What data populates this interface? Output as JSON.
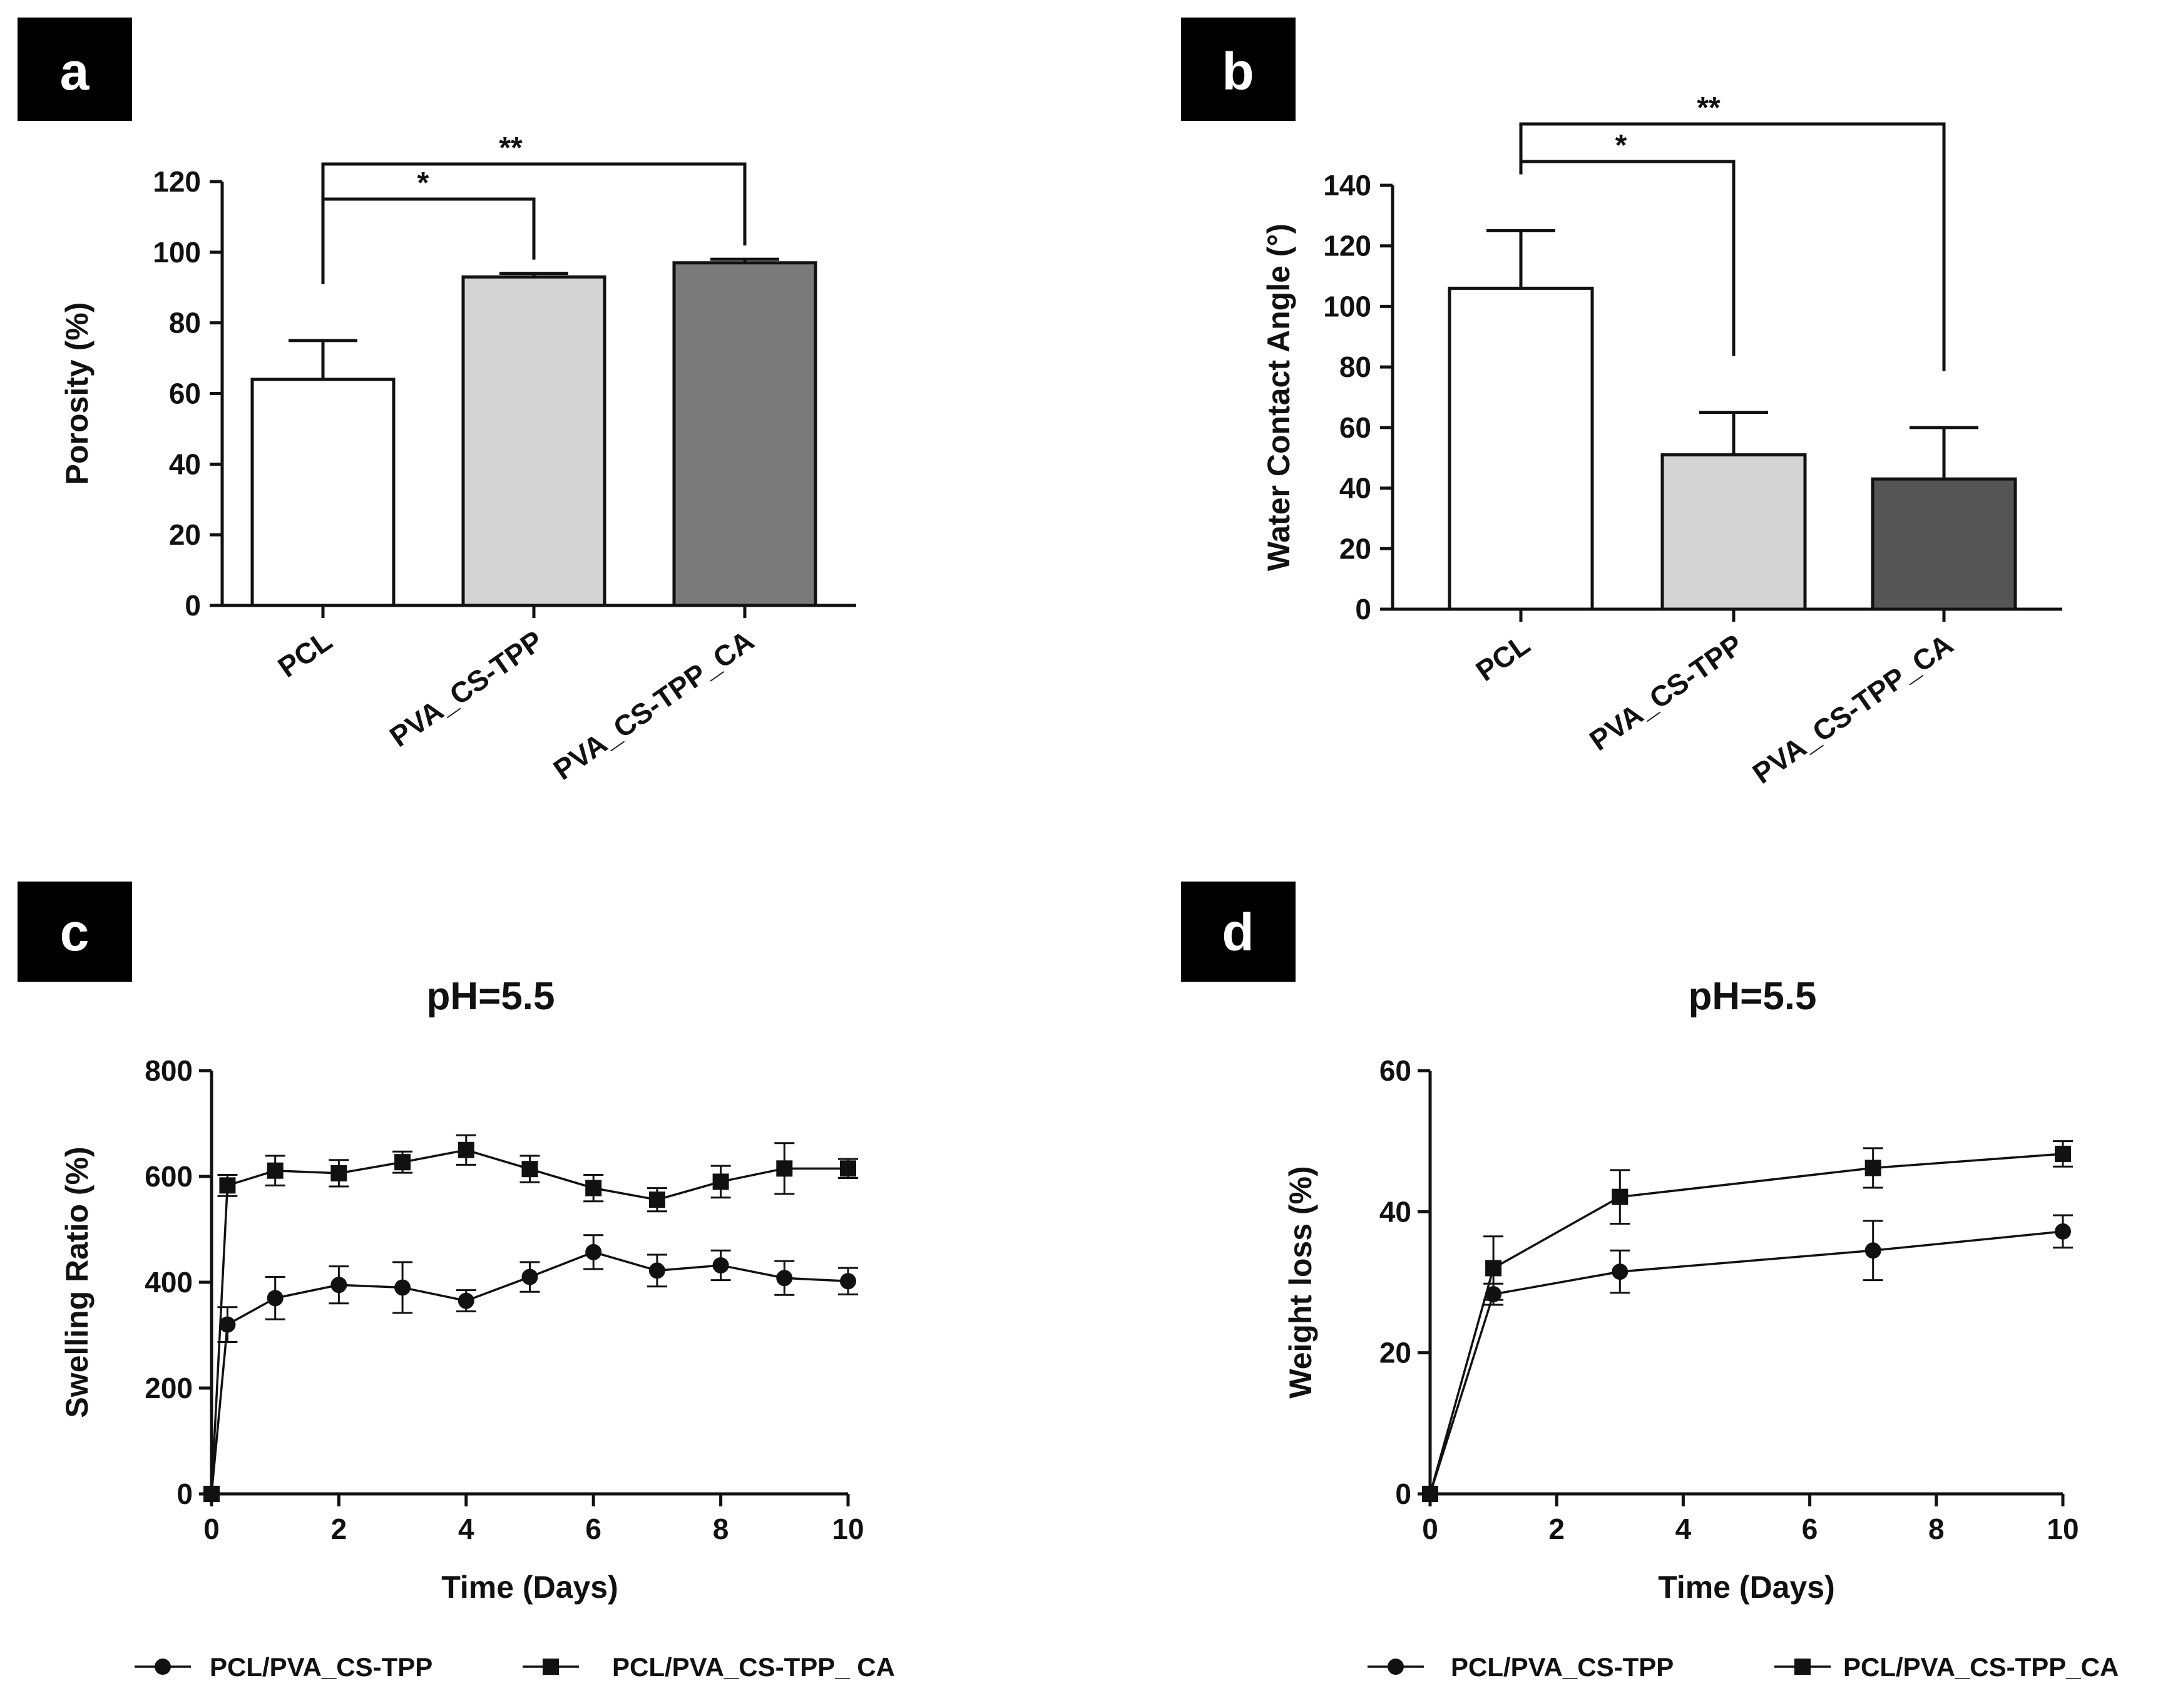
{
  "panels": {
    "a": {
      "label": "a"
    },
    "b": {
      "label": "b"
    },
    "c": {
      "label": "c",
      "title": "pH=5.5"
    },
    "d": {
      "label": "d",
      "title": "pH=5.5"
    }
  },
  "colors": {
    "white_bar": "#ffffff",
    "light_bar": "#d4d4d4",
    "mid_bar": "#7a7a7a",
    "dark_bar": "#555555",
    "ink": "#111111"
  },
  "chart_data": [
    {
      "id": "a",
      "type": "bar",
      "categories": [
        "PCL",
        "PVA_CS-TPP",
        "PVA_CS-TPP_CA"
      ],
      "values": [
        64,
        93,
        97
      ],
      "errors": [
        11,
        1,
        1
      ],
      "bar_colors": [
        "#ffffff",
        "#d4d4d4",
        "#7a7a7a"
      ],
      "ylabel": "Porosity (%)",
      "ylim": [
        0,
        120
      ],
      "yticks": [
        0,
        20,
        40,
        60,
        80,
        100,
        120
      ],
      "significance": [
        {
          "from": 0,
          "to": 1,
          "label": "*"
        },
        {
          "from": 0,
          "to": 2,
          "label": "**"
        }
      ]
    },
    {
      "id": "b",
      "type": "bar",
      "categories": [
        "PCL",
        "PVA_CS-TPP",
        "PVA_CS-TPP_CA"
      ],
      "values": [
        106,
        51,
        43
      ],
      "errors": [
        19,
        14,
        17
      ],
      "bar_colors": [
        "#ffffff",
        "#d4d4d4",
        "#555555"
      ],
      "ylabel": "Water Contact Angle (°)",
      "ylim": [
        0,
        140
      ],
      "yticks": [
        0,
        20,
        40,
        60,
        80,
        100,
        120,
        140
      ],
      "significance": [
        {
          "from": 0,
          "to": 1,
          "label": "*"
        },
        {
          "from": 0,
          "to": 2,
          "label": "**"
        }
      ]
    },
    {
      "id": "c",
      "type": "line",
      "title": "pH=5.5",
      "xlabel": "Time (Days)",
      "ylabel": "Swelling Ratio (%)",
      "xlim": [
        0,
        10
      ],
      "ylim": [
        0,
        800
      ],
      "xticks": [
        0,
        2,
        4,
        6,
        8,
        10
      ],
      "yticks": [
        0,
        200,
        400,
        600,
        800
      ],
      "series": [
        {
          "name": "PCL/PVA_CS-TPP",
          "marker": "circle",
          "x": [
            0,
            0.25,
            1,
            2,
            3,
            4,
            5,
            6,
            7,
            8,
            9,
            10
          ],
          "y": [
            0,
            320,
            370,
            395,
            390,
            365,
            410,
            457,
            422,
            432,
            408,
            402
          ],
          "err": [
            0,
            33,
            40,
            35,
            48,
            20,
            28,
            32,
            30,
            28,
            32,
            25
          ]
        },
        {
          "name": "PCL/PVA_CS-TPP_ CA",
          "marker": "square",
          "x": [
            0,
            0.25,
            1,
            2,
            3,
            4,
            5,
            6,
            7,
            8,
            9,
            10
          ],
          "y": [
            0,
            583,
            611,
            606,
            627,
            650,
            614,
            578,
            556,
            590,
            615,
            615
          ],
          "err": [
            0,
            20,
            28,
            25,
            20,
            28,
            25,
            25,
            22,
            30,
            48,
            18
          ]
        }
      ]
    },
    {
      "id": "d",
      "type": "line",
      "title": "pH=5.5",
      "xlabel": "Time (Days)",
      "ylabel": "Weight loss  (%)",
      "xlim": [
        0,
        10
      ],
      "ylim": [
        0,
        60
      ],
      "xticks": [
        0,
        2,
        4,
        6,
        8,
        10
      ],
      "yticks": [
        0,
        20,
        40,
        60
      ],
      "series": [
        {
          "name": "PCL/PVA_CS-TPP",
          "marker": "circle",
          "x": [
            0,
            1,
            3,
            7,
            10
          ],
          "y": [
            0,
            28.3,
            31.5,
            34.5,
            37.2
          ],
          "err": [
            0,
            1.5,
            3,
            4.2,
            2.3
          ]
        },
        {
          "name": "PCL/PVA_CS-TPP_CA",
          "marker": "square",
          "x": [
            0,
            1,
            3,
            7,
            10
          ],
          "y": [
            0,
            32,
            42.1,
            46.2,
            48.2
          ],
          "err": [
            0,
            4.5,
            3.8,
            2.8,
            1.8
          ]
        }
      ]
    }
  ]
}
